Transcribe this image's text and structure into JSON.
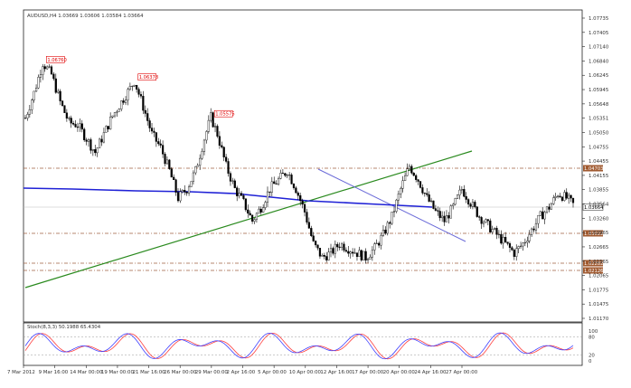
{
  "header": {
    "symbol_line": "AUDUSD,H4 1.03669 1.03606 1.03584 1.03664"
  },
  "colors": {
    "background": "#ffffff",
    "chart_bg": "#f8f8f8",
    "candles": "#000000",
    "ma": "#1f21d6",
    "trend_green": "#2a8a1e",
    "trend_blue": "#6a6ad8",
    "level_line": "#a06040",
    "level_label_bg": "#a05a30",
    "annotation": "#e00000",
    "stoch_main": "#4040ff",
    "stoch_signal": "#ff4040"
  },
  "annotations": [
    {
      "text": "1.06760",
      "price": 1.0676,
      "time_index": 8
    },
    {
      "text": "1.06378",
      "price": 1.06378,
      "time_index": 50
    },
    {
      "text": "1.05575",
      "price": 1.05575,
      "time_index": 85
    }
  ],
  "price_axis": {
    "ticks": [
      "1.07735",
      "1.07405",
      "1.07140",
      "1.06840",
      "1.06245",
      "1.05945",
      "1.05648",
      "1.05351",
      "1.05050",
      "1.04755",
      "1.04455",
      "1.04155",
      "1.03855",
      "1.03564",
      "1.03260",
      "1.02965",
      "1.02665",
      "1.02365",
      "1.02065",
      "1.01775",
      "1.01475",
      "1.01170"
    ],
    "current_price_label": "1.03664",
    "level_labels": [
      "1.04703",
      "1.03022",
      "1.02282",
      "1.02126"
    ]
  },
  "time_axis": {
    "labels": [
      "7 Mar 2012",
      "9 Mar 16:00",
      "14 Mar 00:00",
      "19 Mar 00:00",
      "21 Mar 16:00",
      "26 Mar 00:00",
      "29 Mar 00:00",
      "2 Apr 16:00",
      "5 Apr 00:00",
      "10 Apr 00:00",
      "12 Apr 16:00",
      "17 Apr 00:00",
      "20 Apr 00:00",
      "24 Apr 16:00",
      "27 Apr 00:00"
    ]
  },
  "stochastic": {
    "label": "Stoch(8,3,3) 50.1988 65.4304",
    "level_ticks": [
      "100",
      "80",
      "20",
      "0"
    ]
  },
  "chart_data": {
    "type": "line",
    "title": "AUDUSD,H4 1.03669 1.03606 1.03584 1.03664",
    "x": [
      "7 Mar 2012",
      "9 Mar 16:00",
      "14 Mar 00:00",
      "19 Mar 00:00",
      "21 Mar 16:00",
      "26 Mar 00:00",
      "29 Mar 00:00",
      "2 Apr 16:00",
      "5 Apr 00:00",
      "10 Apr 00:00",
      "12 Apr 16:00",
      "17 Apr 00:00",
      "20 Apr 00:00",
      "24 Apr 16:00",
      "27 Apr 00:00"
    ],
    "ylim": [
      1.0117,
      1.0785
    ],
    "close_path": [
      [
        0,
        1.0555
      ],
      [
        4,
        1.061
      ],
      [
        8,
        1.0676
      ],
      [
        12,
        1.065
      ],
      [
        16,
        1.059
      ],
      [
        20,
        1.0545
      ],
      [
        24,
        1.054
      ],
      [
        28,
        1.051
      ],
      [
        32,
        1.048
      ],
      [
        36,
        1.052
      ],
      [
        40,
        1.056
      ],
      [
        44,
        1.059
      ],
      [
        48,
        1.062
      ],
      [
        50,
        1.0636
      ],
      [
        54,
        1.058
      ],
      [
        58,
        1.052
      ],
      [
        62,
        1.049
      ],
      [
        66,
        1.044
      ],
      [
        70,
        1.038
      ],
      [
        74,
        1.04
      ],
      [
        78,
        1.044
      ],
      [
        82,
        1.051
      ],
      [
        85,
        1.0557
      ],
      [
        88,
        1.052
      ],
      [
        92,
        1.045
      ],
      [
        96,
        1.04
      ],
      [
        100,
        1.037
      ],
      [
        104,
        1.033
      ],
      [
        108,
        1.036
      ],
      [
        112,
        1.04
      ],
      [
        116,
        1.042
      ],
      [
        120,
        1.044
      ],
      [
        124,
        1.04
      ],
      [
        128,
        1.035
      ],
      [
        132,
        1.028
      ],
      [
        136,
        1.025
      ],
      [
        140,
        1.026
      ],
      [
        144,
        1.028
      ],
      [
        148,
        1.027
      ],
      [
        152,
        1.026
      ],
      [
        156,
        1.025
      ],
      [
        160,
        1.027
      ],
      [
        164,
        1.03
      ],
      [
        168,
        1.034
      ],
      [
        172,
        1.04
      ],
      [
        176,
        1.045
      ],
      [
        180,
        1.042
      ],
      [
        184,
        1.038
      ],
      [
        188,
        1.035
      ],
      [
        192,
        1.033
      ],
      [
        196,
        1.036
      ],
      [
        200,
        1.04
      ],
      [
        204,
        1.037
      ],
      [
        208,
        1.034
      ],
      [
        212,
        1.032
      ],
      [
        216,
        1.03
      ],
      [
        220,
        1.028
      ],
      [
        224,
        1.026
      ],
      [
        228,
        1.028
      ],
      [
        232,
        1.031
      ],
      [
        236,
        1.034
      ],
      [
        240,
        1.036
      ],
      [
        244,
        1.039
      ],
      [
        248,
        1.038
      ],
      [
        251,
        1.0366
      ]
    ],
    "series": [
      {
        "name": "AUDUSD,H4",
        "type": "candlestick"
      }
    ]
  }
}
